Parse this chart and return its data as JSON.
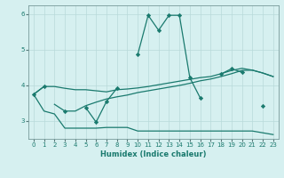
{
  "xlabel": "Humidex (Indice chaleur)",
  "bg_color": "#d6f0f0",
  "grid_color": "#b8dada",
  "line_color": "#1a7a6e",
  "x": [
    0,
    1,
    2,
    3,
    4,
    5,
    6,
    7,
    8,
    9,
    10,
    11,
    12,
    13,
    14,
    15,
    16,
    17,
    18,
    19,
    20,
    21,
    22,
    23
  ],
  "line_main": [
    3.75,
    3.97,
    null,
    3.28,
    null,
    3.38,
    2.97,
    3.55,
    3.92,
    null,
    4.87,
    5.97,
    5.55,
    5.97,
    5.97,
    4.22,
    3.65,
    null,
    4.32,
    4.47,
    4.37,
    null,
    3.42,
    null
  ],
  "line_upper": [
    3.75,
    3.97,
    3.97,
    3.92,
    3.88,
    3.88,
    3.85,
    3.82,
    3.88,
    3.9,
    3.93,
    3.97,
    4.02,
    4.07,
    4.12,
    4.17,
    4.22,
    4.25,
    4.33,
    4.42,
    4.48,
    4.43,
    4.35,
    4.25
  ],
  "line_lower": [
    3.75,
    3.28,
    3.2,
    2.8,
    2.8,
    2.8,
    2.8,
    2.82,
    2.82,
    2.82,
    2.72,
    2.72,
    2.72,
    2.72,
    2.72,
    2.72,
    2.72,
    2.72,
    2.72,
    2.72,
    2.72,
    2.72,
    2.67,
    2.62
  ],
  "line_mid": [
    3.75,
    null,
    3.47,
    3.28,
    3.28,
    3.43,
    3.53,
    3.62,
    3.68,
    3.73,
    3.8,
    3.85,
    3.9,
    3.95,
    4.0,
    4.06,
    4.13,
    4.18,
    4.25,
    4.33,
    4.42,
    4.43,
    4.35,
    4.25
  ],
  "ylim": [
    2.5,
    6.25
  ],
  "xlim": [
    -0.5,
    23.5
  ],
  "yticks": [
    3,
    4,
    5,
    6
  ],
  "xticks": [
    0,
    1,
    2,
    3,
    4,
    5,
    6,
    7,
    8,
    9,
    10,
    11,
    12,
    13,
    14,
    15,
    16,
    17,
    18,
    19,
    20,
    21,
    22,
    23
  ]
}
